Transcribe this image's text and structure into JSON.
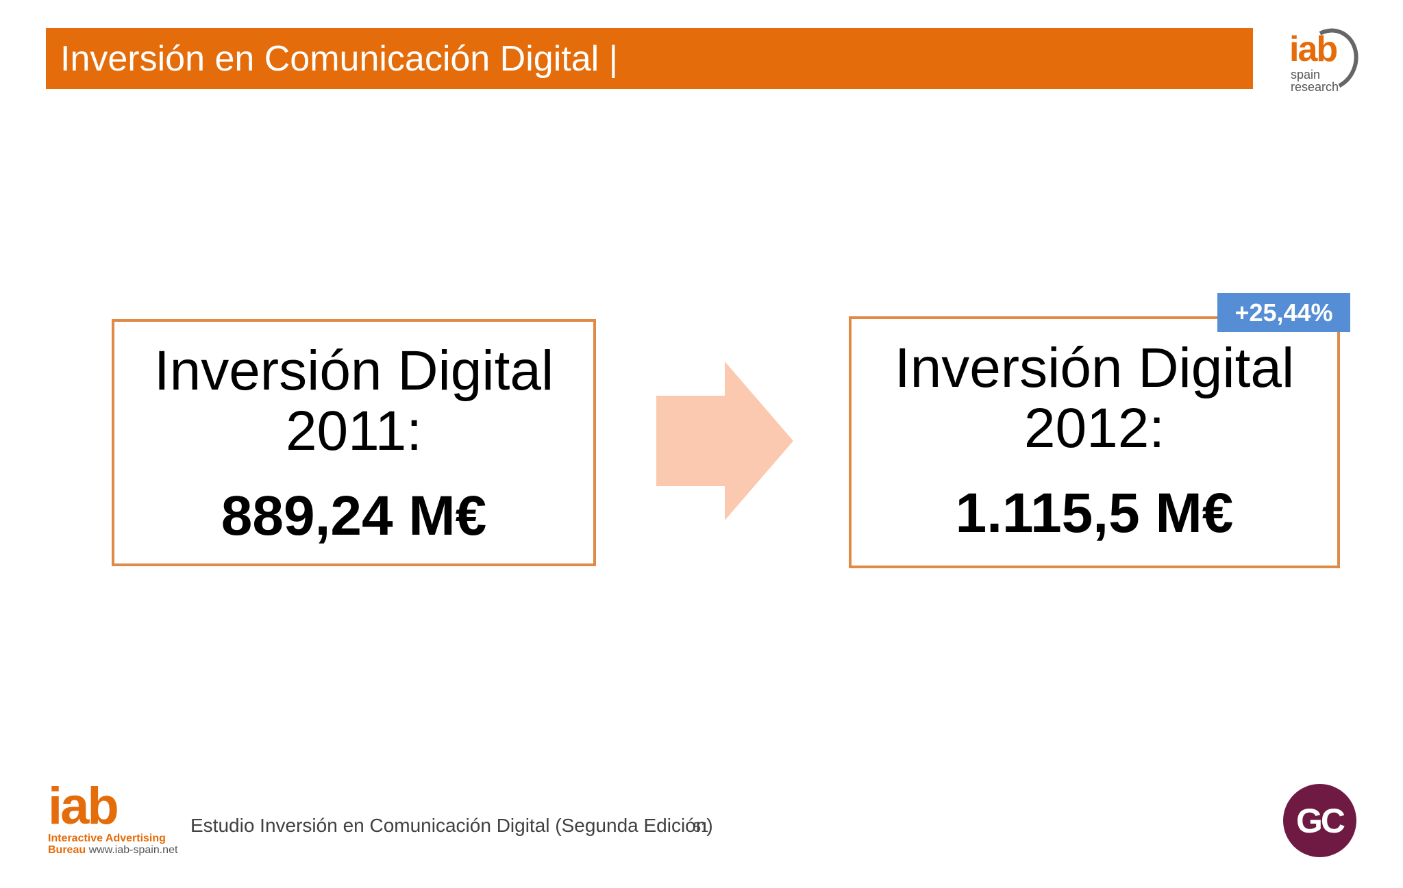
{
  "header": {
    "title": "Inversión en Comunicación Digital |",
    "logo": {
      "brand": "iab",
      "line1": "spain",
      "line2": "research"
    }
  },
  "comparison": {
    "left": {
      "label_line1": "Inversión Digital",
      "label_line2": "2011:",
      "amount": "889,24 M€"
    },
    "right": {
      "label_line1": "Inversión Digital",
      "label_line2": "2012:",
      "amount": "1.115,5 M€"
    },
    "growth": "+25,44%",
    "arrow_icon": "right-arrow-icon"
  },
  "footer": {
    "logo": {
      "brand": "iab",
      "line1": "Interactive Advertising",
      "line2_bold": "Bureau",
      "url": "www.iab-spain.net"
    },
    "text": "Estudio Inversión en Comunicación Digital (Segunda Edición)",
    "page_number": "51",
    "badge": "GC"
  },
  "colors": {
    "accent": "#e46c0a",
    "box_border": "#e08a45",
    "arrow": "#fbc9b0",
    "badge_blue": "#558ed5",
    "gc_badge": "#6e1a43"
  }
}
